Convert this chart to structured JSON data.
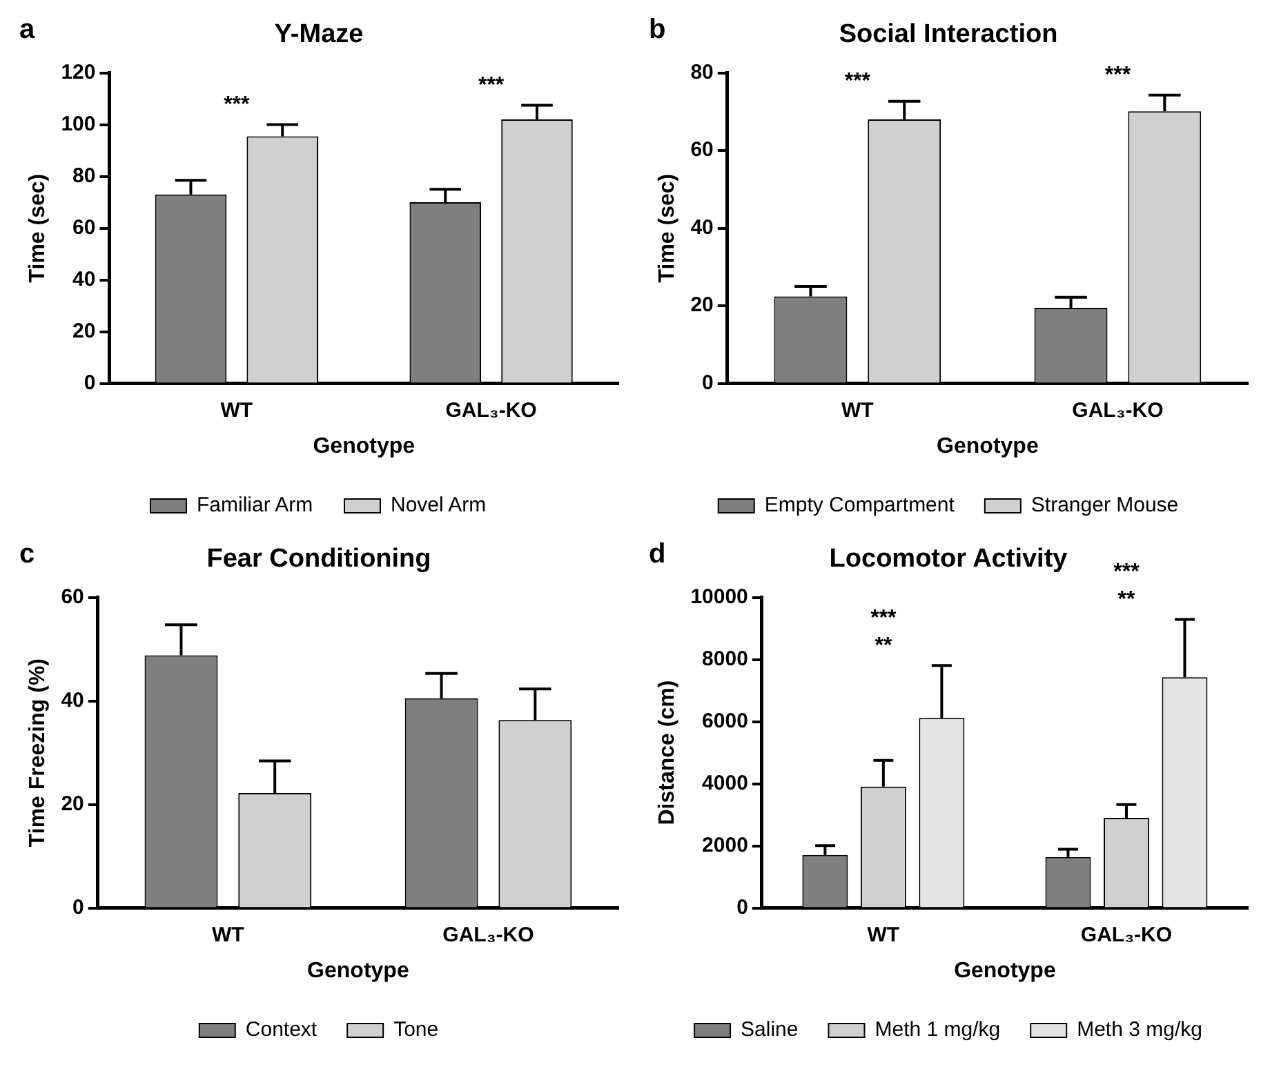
{
  "chart_data": [
    {
      "type": "bar",
      "title": "Y-Maze",
      "xlabel": "Genotype",
      "ylabel": "Time (sec)",
      "categories": [
        "WT",
        "GAL₃-KO"
      ],
      "series": [
        {
          "name": "Familiar Arm",
          "color": "#7f7f7f",
          "values": [
            73,
            70
          ],
          "errors": [
            [
              73,
              78.5
            ],
            [
              70,
              75
            ]
          ]
        },
        {
          "name": "Novel Arm",
          "color": "#d0d0d0",
          "values": [
            95.5,
            102
          ],
          "errors": [
            [
              95.5,
              100
            ],
            [
              102,
              107.5
            ]
          ]
        }
      ],
      "ylim": [
        0,
        120
      ],
      "yticks": [
        0,
        20,
        40,
        60,
        80,
        100,
        120
      ],
      "grid": false,
      "legend": "bottom",
      "annotations": [
        "a",
        "***",
        "***"
      ]
    },
    {
      "type": "bar",
      "title": "Social Interaction",
      "xlabel": "Genotype",
      "ylabel": "Time (sec)",
      "categories": [
        "WT",
        "GAL₃-KO"
      ],
      "series": [
        {
          "name": "Empty Compartment",
          "color": "#7f7f7f",
          "values": [
            22.4,
            19.5
          ],
          "errors": [
            [
              22.4,
              25
            ],
            [
              19.5,
              22.2
            ]
          ]
        },
        {
          "name": "Stranger Mouse",
          "color": "#d0d0d0",
          "values": [
            68,
            70.1
          ],
          "errors": [
            [
              68,
              72.7
            ],
            [
              70.1,
              74.3
            ]
          ]
        }
      ],
      "ylim": [
        0,
        80
      ],
      "yticks": [
        0,
        20,
        40,
        60,
        80
      ],
      "grid": false,
      "legend": "bottom",
      "annotations": [
        "b",
        "***",
        "***"
      ]
    },
    {
      "type": "bar",
      "title": "Fear Conditioning",
      "xlabel": "Genotype",
      "ylabel": "Time Freezing (%)",
      "categories": [
        "WT",
        "GAL₃-KO"
      ],
      "series": [
        {
          "name": "Context",
          "color": "#7f7f7f",
          "values": [
            48.8,
            40.5
          ],
          "errors": [
            [
              48.8,
              54.7
            ],
            [
              40.5,
              45.3
            ]
          ]
        },
        {
          "name": "Tone",
          "color": "#d0d0d0",
          "values": [
            22.2,
            36.3
          ],
          "errors": [
            [
              22.2,
              28.4
            ],
            [
              36.3,
              42.3
            ]
          ]
        }
      ],
      "ylim": [
        0,
        60
      ],
      "yticks": [
        0,
        20,
        40,
        60
      ],
      "grid": false,
      "legend": "bottom",
      "annotations": [
        "c"
      ]
    },
    {
      "type": "bar",
      "title": "Locomotor Activity",
      "xlabel": "Genotype",
      "ylabel": "Distance (cm)",
      "categories": [
        "WT",
        "GAL₃-KO"
      ],
      "series": [
        {
          "name": "Saline",
          "color": "#7f7f7f",
          "values": [
            1710,
            1640
          ],
          "errors": [
            [
              1710,
              2010
            ],
            [
              1640,
              1890
            ]
          ]
        },
        {
          "name": "Meth 1 mg/kg",
          "color": "#d0d0d0",
          "values": [
            3910,
            2900
          ],
          "errors": [
            [
              3910,
              4750
            ],
            [
              2900,
              3330
            ]
          ]
        },
        {
          "name": "Meth 3 mg/kg",
          "color": "#e4e4e4",
          "values": [
            6120,
            7430
          ],
          "errors": [
            [
              6120,
              7810
            ],
            [
              7430,
              9290
            ]
          ]
        }
      ],
      "ylim": [
        0,
        10000
      ],
      "yticks": [
        0,
        2000,
        4000,
        6000,
        8000,
        10000
      ],
      "grid": false,
      "legend": "bottom",
      "annotations": [
        "d",
        "**",
        "***",
        "**",
        "***"
      ]
    }
  ]
}
